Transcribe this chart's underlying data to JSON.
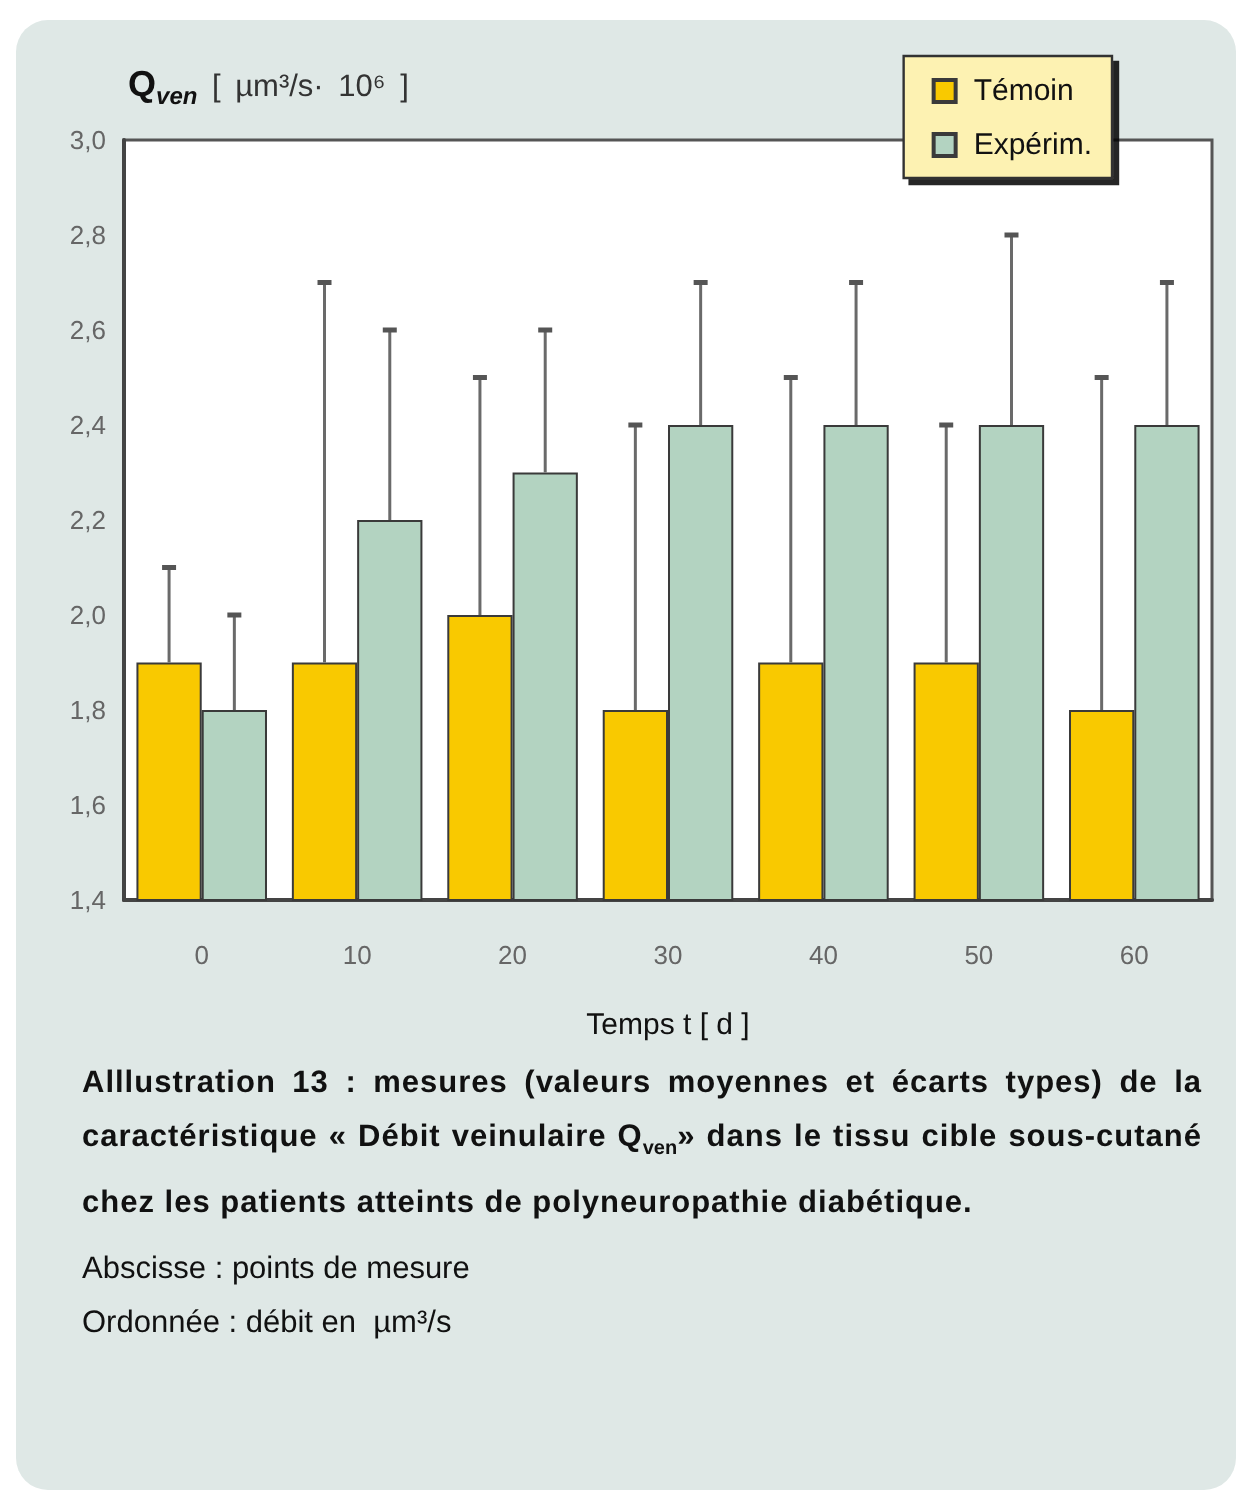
{
  "chart_data": {
    "type": "bar",
    "ylabel": "Q$_{ven}$ [ µm³/s· 10⁶ ]",
    "xlabel": "Temps t [ d ]",
    "categories": [
      "0",
      "10",
      "20",
      "30",
      "40",
      "50",
      "60"
    ],
    "series": [
      {
        "name": "Témoin",
        "color": "#f9c900",
        "values": [
          1.9,
          1.9,
          2.0,
          1.8,
          1.9,
          1.9,
          1.8
        ],
        "errors": [
          [
            1.9,
            2.1
          ],
          [
            1.9,
            2.7
          ],
          [
            2.0,
            2.5
          ],
          [
            1.8,
            2.4
          ],
          [
            1.9,
            2.5
          ],
          [
            1.9,
            2.4
          ],
          [
            1.8,
            2.5
          ]
        ]
      },
      {
        "name": "Expérim.",
        "color": "#b3d3c1",
        "values": [
          1.8,
          2.2,
          2.3,
          2.4,
          2.4,
          2.4,
          2.4
        ],
        "errors": [
          [
            1.8,
            2.0
          ],
          [
            2.2,
            2.6
          ],
          [
            2.3,
            2.6
          ],
          [
            2.4,
            2.7
          ],
          [
            2.4,
            2.7
          ],
          [
            2.4,
            2.8
          ],
          [
            2.4,
            2.7
          ]
        ]
      }
    ],
    "ylim": [
      1.4,
      3.0
    ],
    "yticks": [
      {
        "value": 1.4,
        "label": "1,4"
      },
      {
        "value": 1.6,
        "label": "1,6"
      },
      {
        "value": 1.8,
        "label": "1,8"
      },
      {
        "value": 2.0,
        "label": "2,0"
      },
      {
        "value": 2.2,
        "label": "2,2"
      },
      {
        "value": 2.4,
        "label": "2,4"
      },
      {
        "value": 2.6,
        "label": "2,6"
      },
      {
        "value": 2.8,
        "label": "2,8"
      },
      {
        "value": 3.0,
        "label": "3,0"
      }
    ],
    "legend": "top right",
    "annotations": [
      "Alllustration 13 : mesures (valeurs moyennes et écarts types) de la caractéristique « Débit veinulaire Q$_{ven}$» dans le tissu cible sous-cutané chez les patients atteints de polyneuropathie diabétique.",
      "Abscisse : points de mesure",
      "Ordonnée : débit en  µm³/s"
    ]
  }
}
